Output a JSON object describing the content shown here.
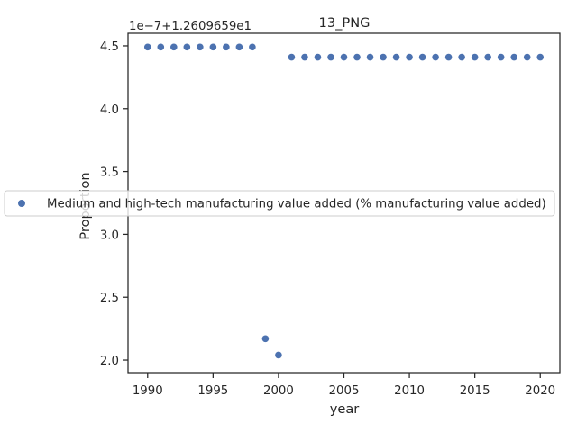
{
  "chart_data": {
    "type": "scatter",
    "title": "13_PNG",
    "xlabel": "year",
    "ylabel": "Proportion",
    "offset_label": "1e−7+1.2609659e1",
    "xlim": [
      1988.5,
      2021.5
    ],
    "ylim": [
      1.9,
      4.6
    ],
    "xticks": [
      1990,
      1995,
      2000,
      2005,
      2010,
      2015,
      2020
    ],
    "xtick_labels": [
      "1990",
      "1995",
      "2000",
      "2005",
      "2010",
      "2015",
      "2020"
    ],
    "yticks": [
      2.0,
      2.5,
      3.0,
      3.5,
      4.0,
      4.5
    ],
    "ytick_labels": [
      "2.0",
      "2.5",
      "3.0",
      "3.5",
      "4.0",
      "4.5"
    ],
    "grid": false,
    "legend_position": "center",
    "color": "#4c72b0",
    "series": [
      {
        "name": "Medium and high-tech manufacturing value added (% manufacturing value added)",
        "x": [
          1990,
          1991,
          1992,
          1993,
          1994,
          1995,
          1996,
          1997,
          1998,
          1999,
          2000,
          2001,
          2002,
          2003,
          2004,
          2005,
          2006,
          2007,
          2008,
          2009,
          2010,
          2011,
          2012,
          2013,
          2014,
          2015,
          2016,
          2017,
          2018,
          2019,
          2020
        ],
        "y": [
          4.49,
          4.49,
          4.49,
          4.49,
          4.49,
          4.49,
          4.49,
          4.49,
          4.49,
          2.17,
          2.04,
          4.41,
          4.41,
          4.41,
          4.41,
          4.41,
          4.41,
          4.41,
          4.41,
          4.41,
          4.41,
          4.41,
          4.41,
          4.41,
          4.41,
          4.41,
          4.41,
          4.41,
          4.41,
          4.41,
          4.41
        ]
      }
    ]
  }
}
